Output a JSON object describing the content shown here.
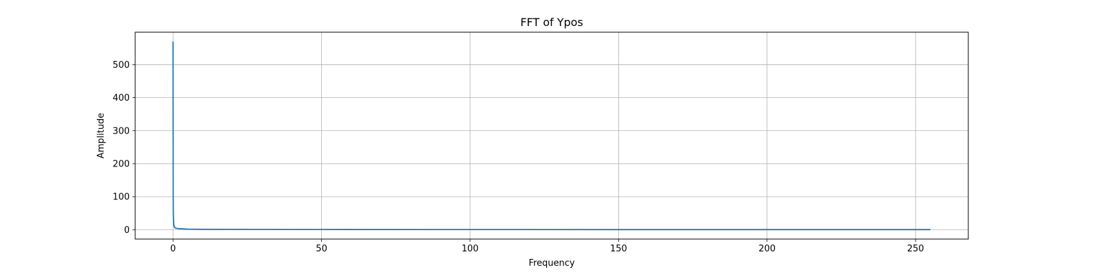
{
  "chart_data": {
    "type": "line",
    "title": "FFT of Ypos",
    "xlabel": "Frequency",
    "ylabel": "Amplitude",
    "xlim": [
      -12.75,
      267.75
    ],
    "ylim": [
      -28.5,
      598.5
    ],
    "xticks": [
      0,
      50,
      100,
      150,
      200,
      250
    ],
    "yticks": [
      0,
      100,
      200,
      300,
      400,
      500
    ],
    "grid": true,
    "series": [
      {
        "color": "#1f77b4",
        "x": [
          0,
          0.05,
          0.1,
          0.2,
          0.3,
          0.5,
          0.8,
          1.2,
          2,
          3,
          5,
          10,
          50,
          100,
          150,
          200,
          250,
          255
        ],
        "y": [
          570,
          100,
          45,
          20,
          12,
          7,
          5,
          4,
          3,
          2.5,
          1.5,
          1,
          0.5,
          0.3,
          0.2,
          0.2,
          0.2,
          0.2
        ]
      }
    ]
  }
}
